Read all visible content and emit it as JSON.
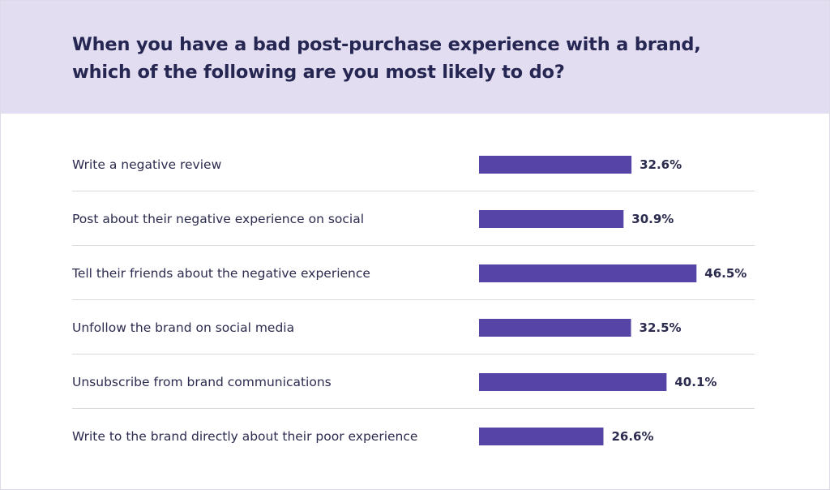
{
  "chart_data": {
    "type": "bar",
    "orientation": "horizontal",
    "title": "When you have a bad post-purchase experience with a brand, which of the following are you most likely to do?",
    "categories": [
      "Write a negative review",
      "Post about their negative experience on social",
      "Tell their friends about the negative experience",
      "Unfollow the brand on social media",
      "Unsubscribe from brand communications",
      "Write to the brand directly about their poor experience"
    ],
    "values": [
      32.6,
      30.9,
      46.5,
      32.5,
      40.1,
      26.6
    ],
    "value_labels": [
      "32.6%",
      "30.9%",
      "46.5%",
      "32.5%",
      "40.1%",
      "26.6%"
    ],
    "value_suffix": "%",
    "grid": false,
    "legend": "none"
  },
  "colors": {
    "bar": "#5645a6",
    "header_bg": "#e2ddf0",
    "text": "#262653",
    "divider": "#d9d9df"
  }
}
